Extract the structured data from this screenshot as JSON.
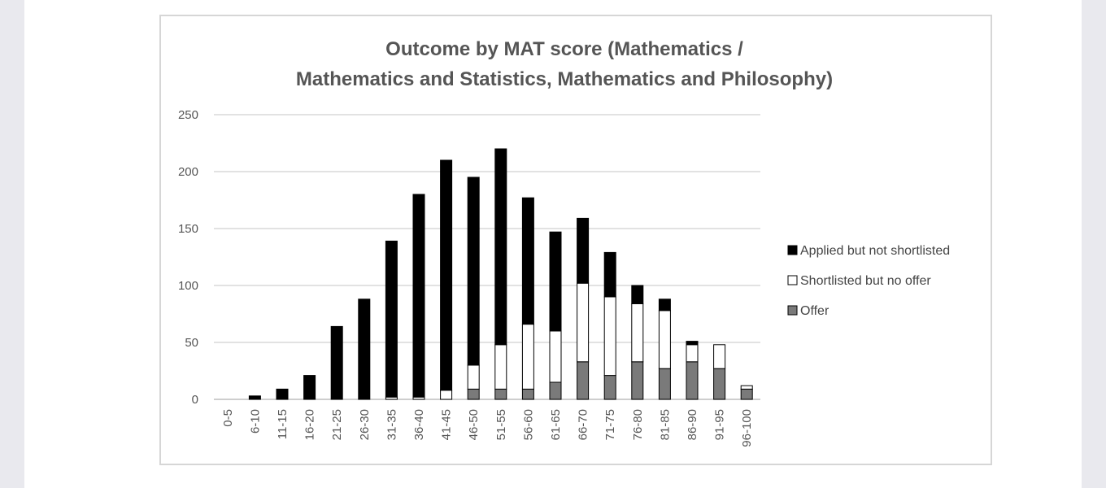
{
  "chart_data": {
    "type": "bar",
    "stacked": true,
    "title": "Outcome by MAT score (Mathematics / Mathematics and Statistics, Mathematics and Philosophy)",
    "title_lines": [
      "Outcome by MAT score (Mathematics /",
      "Mathematics and Statistics, Mathematics and Philosophy)"
    ],
    "xlabel": "",
    "ylabel": "",
    "ylim": [
      0,
      250
    ],
    "yticks": [
      0,
      50,
      100,
      150,
      200,
      250
    ],
    "grid": true,
    "legend_position": "right",
    "categories": [
      "0-5",
      "6-10",
      "11-15",
      "16-20",
      "21-25",
      "26-30",
      "31-35",
      "36-40",
      "41-45",
      "46-50",
      "51-55",
      "56-60",
      "61-65",
      "66-70",
      "71-75",
      "76-80",
      "81-85",
      "86-90",
      "91-95",
      "96-100"
    ],
    "series": [
      {
        "name": "Offer",
        "color": "#7a7a7a",
        "values": [
          0,
          0,
          0,
          0,
          0,
          0,
          0,
          0,
          0,
          9,
          9,
          9,
          15,
          33,
          21,
          33,
          27,
          33,
          27,
          9
        ]
      },
      {
        "name": "Shortlisted but no offer",
        "color": "#ffffff",
        "values": [
          0,
          0,
          0,
          0,
          0,
          0,
          2,
          2,
          8,
          21,
          39,
          57,
          45,
          69,
          69,
          51,
          51,
          15,
          21,
          3
        ]
      },
      {
        "name": "Applied but not shortlisted",
        "color": "#000000",
        "values": [
          0,
          3,
          9,
          21,
          64,
          88,
          137,
          178,
          202,
          165,
          172,
          111,
          87,
          57,
          39,
          16,
          10,
          3,
          0,
          0
        ]
      }
    ],
    "legend_order": [
      "Applied but not shortlisted",
      "Shortlisted but no offer",
      "Offer"
    ]
  }
}
